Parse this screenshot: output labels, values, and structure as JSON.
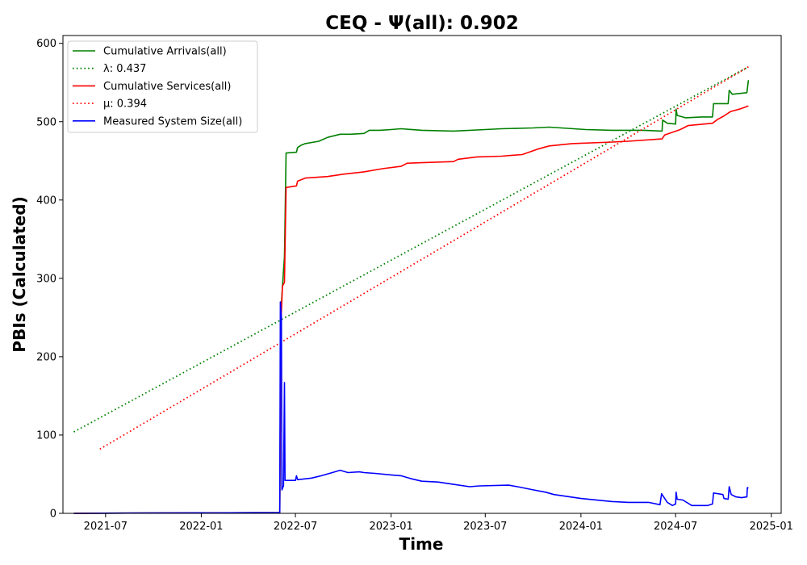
{
  "chart_data": {
    "type": "line",
    "title": "CEQ -  Ψ(all): 0.902",
    "xlabel": "Time",
    "ylabel": "PBIs (Calculated)",
    "xlim": [
      "2021-04-10",
      "2025-01-20"
    ],
    "ylim": [
      0,
      610
    ],
    "x_ticks": [
      "2021-07",
      "2022-01",
      "2022-07",
      "2023-01",
      "2023-07",
      "2024-01",
      "2024-07",
      "2025-01"
    ],
    "y_ticks": [
      0,
      100,
      200,
      300,
      400,
      500,
      600
    ],
    "grid": false,
    "legend_position": "top-left",
    "series": [
      {
        "name": "Cumulative Arrivals(all)",
        "legend_label": "Cumulative Arrivals(all)",
        "color": "#008000",
        "style": "solid",
        "points": [
          [
            "2021-05-01",
            0
          ],
          [
            "2022-06-01",
            1
          ],
          [
            "2022-06-03",
            255
          ],
          [
            "2022-06-06",
            290
          ],
          [
            "2022-06-10",
            328
          ],
          [
            "2022-06-13",
            460
          ],
          [
            "2022-07-03",
            461
          ],
          [
            "2022-07-05",
            467
          ],
          [
            "2022-07-12",
            470
          ],
          [
            "2022-07-20",
            472
          ],
          [
            "2022-08-15",
            475
          ],
          [
            "2022-09-01",
            480
          ],
          [
            "2022-09-25",
            484
          ],
          [
            "2022-10-15",
            484
          ],
          [
            "2022-11-10",
            485
          ],
          [
            "2022-11-20",
            489
          ],
          [
            "2022-12-10",
            489
          ],
          [
            "2023-01-01",
            490
          ],
          [
            "2023-01-20",
            491
          ],
          [
            "2023-03-01",
            489
          ],
          [
            "2023-05-01",
            488
          ],
          [
            "2023-07-01",
            490
          ],
          [
            "2023-08-01",
            491
          ],
          [
            "2023-10-01",
            492
          ],
          [
            "2023-11-01",
            493
          ],
          [
            "2024-01-10",
            490
          ],
          [
            "2024-03-01",
            489
          ],
          [
            "2024-05-01",
            489
          ],
          [
            "2024-06-05",
            488
          ],
          [
            "2024-06-06",
            502
          ],
          [
            "2024-06-15",
            498
          ],
          [
            "2024-07-01",
            497
          ],
          [
            "2024-07-02",
            516
          ],
          [
            "2024-07-04",
            508
          ],
          [
            "2024-07-20",
            505
          ],
          [
            "2024-08-20",
            506
          ],
          [
            "2024-09-10",
            506
          ],
          [
            "2024-09-12",
            523
          ],
          [
            "2024-10-10",
            523
          ],
          [
            "2024-10-12",
            540
          ],
          [
            "2024-10-18",
            535
          ],
          [
            "2024-11-15",
            537
          ],
          [
            "2024-11-18",
            553
          ]
        ]
      },
      {
        "name": "λ: 0.437",
        "legend_label": "λ: 0.437",
        "color": "#008000",
        "style": "dotted",
        "points": [
          [
            "2021-05-01",
            104
          ],
          [
            "2024-11-18",
            570
          ]
        ]
      },
      {
        "name": "Cumulative Services(all)",
        "legend_label": "Cumulative Services(all)",
        "color": "#ff0000",
        "style": "solid",
        "points": [
          [
            "2021-05-01",
            0
          ],
          [
            "2022-06-01",
            1
          ],
          [
            "2022-06-03",
            240
          ],
          [
            "2022-06-06",
            290
          ],
          [
            "2022-06-10",
            295
          ],
          [
            "2022-06-13",
            416
          ],
          [
            "2022-07-03",
            418
          ],
          [
            "2022-07-05",
            424
          ],
          [
            "2022-07-20",
            428
          ],
          [
            "2022-09-01",
            430
          ],
          [
            "2022-10-01",
            433
          ],
          [
            "2022-11-10",
            436
          ],
          [
            "2022-12-15",
            440
          ],
          [
            "2023-01-20",
            443
          ],
          [
            "2023-02-01",
            447
          ],
          [
            "2023-05-01",
            449
          ],
          [
            "2023-05-10",
            452
          ],
          [
            "2023-06-15",
            455
          ],
          [
            "2023-08-01",
            456
          ],
          [
            "2023-09-10",
            458
          ],
          [
            "2023-10-10",
            465
          ],
          [
            "2023-11-01",
            469
          ],
          [
            "2023-12-15",
            472
          ],
          [
            "2024-03-01",
            474
          ],
          [
            "2024-04-01",
            475
          ],
          [
            "2024-06-05",
            478
          ],
          [
            "2024-06-10",
            483
          ],
          [
            "2024-07-10",
            490
          ],
          [
            "2024-07-25",
            495
          ],
          [
            "2024-09-10",
            498
          ],
          [
            "2024-09-20",
            503
          ],
          [
            "2024-10-01",
            507
          ],
          [
            "2024-10-15",
            513
          ],
          [
            "2024-11-01",
            516
          ],
          [
            "2024-11-18",
            520
          ]
        ]
      },
      {
        "name": "μ: 0.394",
        "legend_label": "μ: 0.394",
        "color": "#ff0000",
        "style": "dotted",
        "points": [
          [
            "2021-06-20",
            82
          ],
          [
            "2024-11-18",
            570
          ]
        ]
      },
      {
        "name": "Measured System Size(all)",
        "legend_label": "Measured System Size(all)",
        "color": "#0000ff",
        "style": "solid",
        "points": [
          [
            "2021-05-01",
            0
          ],
          [
            "2022-06-01",
            1
          ],
          [
            "2022-06-02",
            270
          ],
          [
            "2022-06-04",
            250
          ],
          [
            "2022-06-05",
            30
          ],
          [
            "2022-06-08",
            35
          ],
          [
            "2022-06-10",
            167
          ],
          [
            "2022-06-11",
            42
          ],
          [
            "2022-07-01",
            42
          ],
          [
            "2022-07-03",
            48
          ],
          [
            "2022-07-05",
            43
          ],
          [
            "2022-08-01",
            45
          ],
          [
            "2022-08-20",
            48
          ],
          [
            "2022-09-10",
            52
          ],
          [
            "2022-09-25",
            55
          ],
          [
            "2022-10-10",
            52
          ],
          [
            "2022-11-01",
            53
          ],
          [
            "2022-11-10",
            52
          ],
          [
            "2022-12-01",
            51
          ],
          [
            "2023-01-01",
            49
          ],
          [
            "2023-01-20",
            48
          ],
          [
            "2023-02-10",
            44
          ],
          [
            "2023-03-01",
            41
          ],
          [
            "2023-04-01",
            40
          ],
          [
            "2023-05-01",
            37
          ],
          [
            "2023-06-01",
            34
          ],
          [
            "2023-06-20",
            35
          ],
          [
            "2023-08-15",
            36
          ],
          [
            "2023-09-01",
            34
          ],
          [
            "2023-10-01",
            30
          ],
          [
            "2023-10-25",
            27
          ],
          [
            "2023-11-10",
            24
          ],
          [
            "2024-01-01",
            19
          ],
          [
            "2024-03-01",
            15
          ],
          [
            "2024-04-01",
            14
          ],
          [
            "2024-05-10",
            14
          ],
          [
            "2024-06-01",
            11
          ],
          [
            "2024-06-04",
            25
          ],
          [
            "2024-06-15",
            14
          ],
          [
            "2024-06-25",
            10
          ],
          [
            "2024-07-01",
            12
          ],
          [
            "2024-07-02",
            27
          ],
          [
            "2024-07-04",
            18
          ],
          [
            "2024-07-15",
            17
          ],
          [
            "2024-08-01",
            10
          ],
          [
            "2024-09-01",
            10
          ],
          [
            "2024-09-10",
            12
          ],
          [
            "2024-09-12",
            26
          ],
          [
            "2024-09-30",
            24
          ],
          [
            "2024-10-02",
            19
          ],
          [
            "2024-10-10",
            18
          ],
          [
            "2024-10-12",
            34
          ],
          [
            "2024-10-16",
            24
          ],
          [
            "2024-10-25",
            21
          ],
          [
            "2024-11-05",
            20
          ],
          [
            "2024-11-15",
            21
          ],
          [
            "2024-11-16",
            33
          ],
          [
            "2024-11-18",
            32
          ]
        ]
      }
    ]
  }
}
